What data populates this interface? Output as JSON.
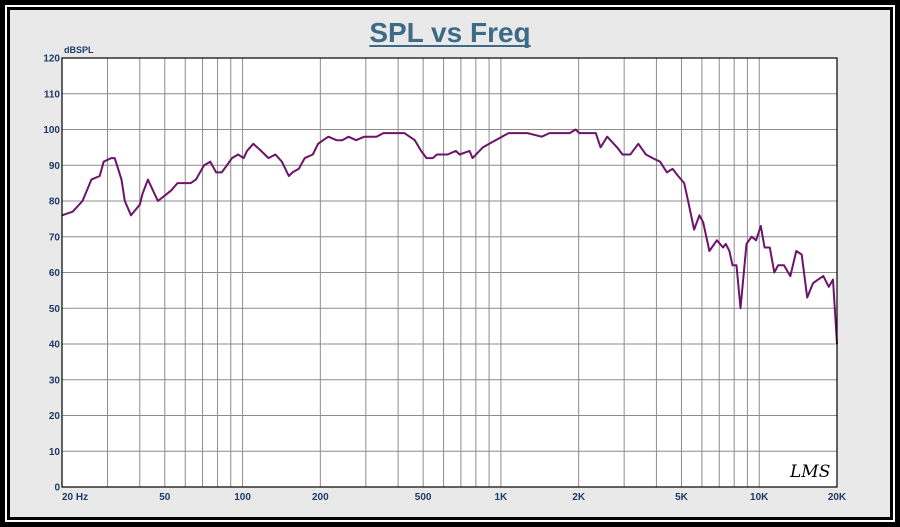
{
  "chart_data": {
    "type": "line",
    "title": "SPL vs Freq",
    "ylabel": "dBSPL",
    "xlabel": "",
    "x_scale": "log",
    "xlim": [
      20,
      20000
    ],
    "ylim": [
      0,
      120
    ],
    "grid": true,
    "yticks": [
      0,
      10,
      20,
      30,
      40,
      50,
      60,
      70,
      80,
      90,
      100,
      110,
      120
    ],
    "ytick_labels": [
      "0",
      "10",
      "20",
      "30",
      "40",
      "50",
      "60",
      "70",
      "80",
      "90",
      "100",
      "110",
      "120"
    ],
    "xtick_values": [
      20,
      50,
      100,
      200,
      500,
      1000,
      2000,
      5000,
      10000,
      20000
    ],
    "xtick_labels": [
      "20  Hz",
      "50",
      "100",
      "200",
      "500",
      "1K",
      "2K",
      "5K",
      "10K",
      "20K"
    ],
    "x_minor_grid": [
      30,
      40,
      60,
      70,
      80,
      90,
      300,
      400,
      600,
      700,
      800,
      900,
      3000,
      4000,
      6000,
      7000,
      8000,
      9000
    ],
    "watermark": "LMS",
    "colors": {
      "line": "#6b1469",
      "title": "#3d6a86",
      "ticks": "#1e3a66",
      "plot_background": "#ffffff",
      "panel_background": "#e9e9e9",
      "grid": "#8c8c8c"
    },
    "series": [
      {
        "x": [
          20,
          22,
          24,
          26,
          28,
          29,
          31,
          32,
          34,
          35,
          37,
          40,
          41,
          43,
          47,
          51,
          53,
          56,
          60,
          63,
          66,
          71,
          75,
          79,
          83,
          87,
          91,
          96,
          101,
          104,
          110,
          118,
          126,
          134,
          142,
          151,
          156,
          165,
          174,
          187,
          196,
          205,
          215,
          231,
          243,
          257,
          275,
          296,
          330,
          351,
          398,
          423,
          464,
          491,
          515,
          545,
          566,
          622,
          669,
          692,
          756,
          777,
          851,
          1009,
          1071,
          1194,
          1212,
          1268,
          1439,
          1542,
          1632,
          1752,
          1846,
          1948,
          2012,
          2165,
          2331,
          2431,
          2580,
          2818,
          2956,
          3169,
          3404,
          3643,
          3864,
          4132,
          4390,
          4621,
          4851,
          5122,
          5305,
          5595,
          5866,
          6069,
          6413,
          6857,
          7244,
          7425,
          7665,
          7877,
          8166,
          8465,
          8929,
          9341,
          9728,
          10138,
          10488,
          10988,
          11438,
          11836,
          12469,
          13185,
          13913,
          14596,
          15330,
          16144,
          16892,
          17705,
          18594,
          19305,
          20000
        ],
        "y": [
          76,
          77,
          80,
          86,
          87,
          91,
          92,
          92,
          86,
          80,
          76,
          79,
          82,
          86,
          80,
          82,
          83,
          85,
          85,
          85,
          86,
          90,
          91,
          88,
          88,
          90,
          92,
          93,
          92,
          94,
          96,
          94,
          92,
          93,
          91,
          87,
          88,
          89,
          92,
          93,
          96,
          97,
          98,
          97,
          97,
          98,
          97,
          98,
          98,
          99,
          99,
          99,
          97,
          94,
          92,
          92,
          93,
          93,
          94,
          93,
          94,
          92,
          95,
          98,
          99,
          99,
          99,
          99,
          98,
          99,
          99,
          99,
          99,
          100,
          99,
          99,
          99,
          95,
          98,
          95,
          93,
          93,
          96,
          93,
          92,
          91,
          88,
          89,
          87,
          85,
          80,
          72,
          76,
          74,
          66,
          69,
          67,
          68,
          66,
          62,
          62,
          50,
          68,
          70,
          69,
          73,
          67,
          67,
          60,
          62,
          62,
          59,
          66,
          65,
          53,
          57,
          58,
          59,
          56,
          58,
          40
        ]
      }
    ]
  }
}
